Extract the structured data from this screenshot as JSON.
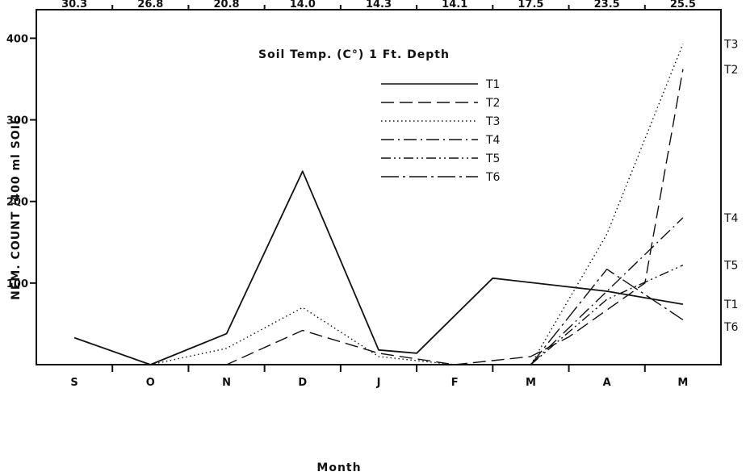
{
  "chart_data": {
    "type": "line",
    "title": "Soil Temp. (C°) 1 Ft. Depth",
    "xlabel": "Month",
    "ylabel": "NEM. COUNT /400 ml SOIL",
    "ylim": [
      0,
      435
    ],
    "y_ticks": [
      100,
      200,
      300,
      400
    ],
    "month_labels": [
      "S",
      "O",
      "N",
      "D",
      "J",
      "F",
      "M",
      "A",
      "M"
    ],
    "temperatures": [
      "30.3",
      "26.8",
      "20.8",
      "14.0",
      "14.3",
      "14.1",
      "17.5",
      "23.5",
      "25.5"
    ],
    "legend_placement": "top-center",
    "grid": false,
    "series": [
      {
        "name": "T1",
        "dash": "solid",
        "points": [
          [
            0.5,
            33
          ],
          [
            1.5,
            0
          ],
          [
            2.5,
            38
          ],
          [
            3.5,
            237
          ],
          [
            4.5,
            18
          ],
          [
            5.0,
            14
          ],
          [
            6.0,
            106
          ],
          [
            7.5,
            90
          ],
          [
            8.5,
            74
          ]
        ]
      },
      {
        "name": "T2",
        "dash": "dashed",
        "points": [
          [
            1.5,
            0
          ],
          [
            2.5,
            0
          ],
          [
            3.5,
            42
          ],
          [
            4.5,
            14
          ],
          [
            5.5,
            0
          ],
          [
            6.5,
            10
          ],
          [
            7.0,
            34
          ],
          [
            8.0,
            100
          ],
          [
            8.5,
            362
          ]
        ]
      },
      {
        "name": "T3",
        "dash": "dotted",
        "points": [
          [
            1.5,
            0
          ],
          [
            2.5,
            20
          ],
          [
            3.5,
            70
          ],
          [
            4.5,
            10
          ],
          [
            5.5,
            0
          ],
          [
            6.5,
            0
          ],
          [
            7.5,
            160
          ],
          [
            8.5,
            393
          ]
        ]
      },
      {
        "name": "T4",
        "dash": "dashdot",
        "points": [
          [
            6.5,
            0
          ],
          [
            7.5,
            90
          ],
          [
            8.5,
            180
          ]
        ]
      },
      {
        "name": "T5",
        "dash": "dashdotdot",
        "points": [
          [
            6.5,
            0
          ],
          [
            7.5,
            80
          ],
          [
            8.5,
            122
          ]
        ]
      },
      {
        "name": "T6",
        "dash": "longdashdot",
        "points": [
          [
            6.5,
            0
          ],
          [
            7.5,
            117
          ],
          [
            8.5,
            55
          ]
        ]
      }
    ]
  }
}
